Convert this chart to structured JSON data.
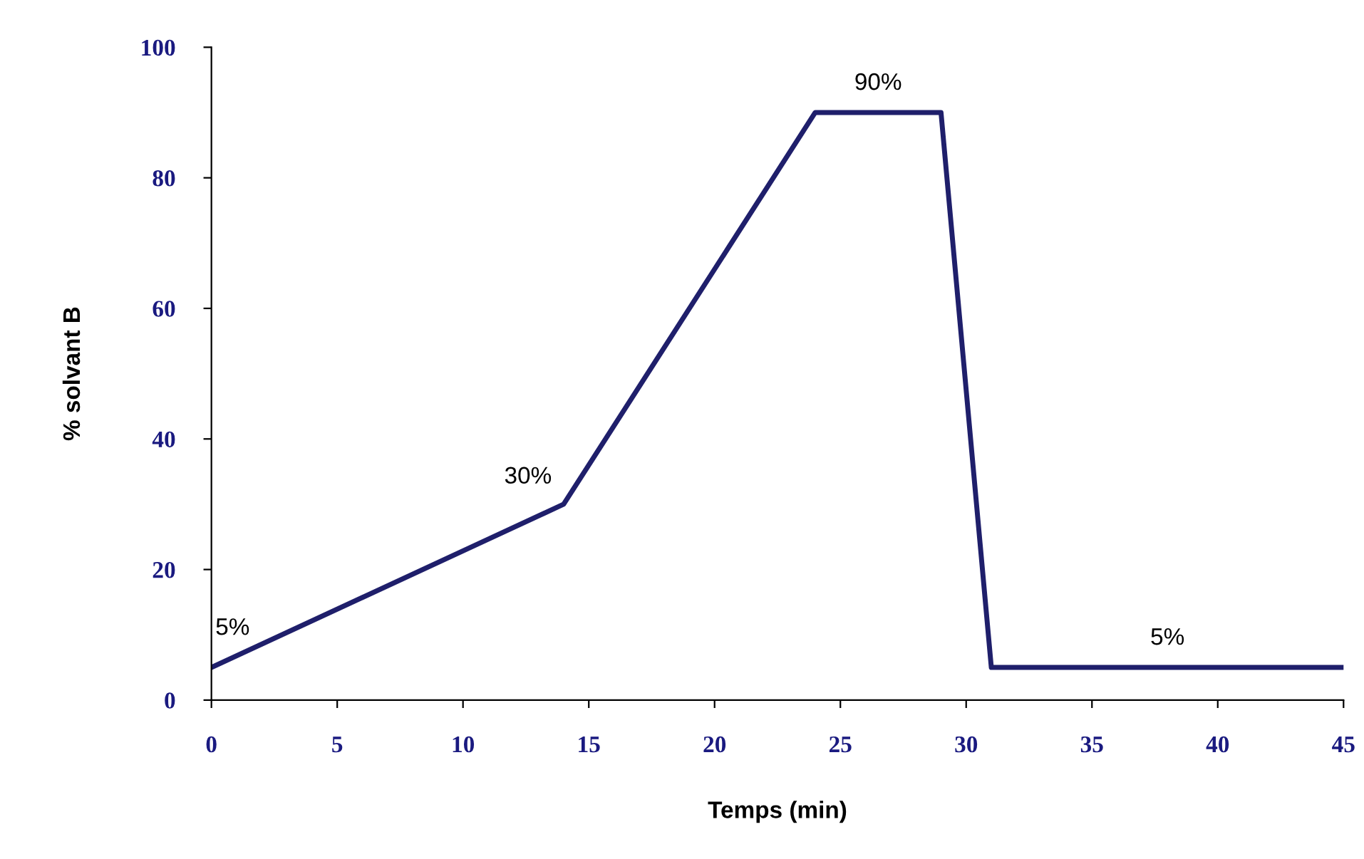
{
  "chart_data": {
    "type": "line",
    "xlabel": "Temps (min)",
    "ylabel": "% solvant B",
    "x": [
      0,
      14,
      24,
      29,
      31,
      45
    ],
    "series": [
      {
        "color": "#1f1f6b",
        "values": [
          5,
          30,
          90,
          90,
          5,
          5
        ]
      }
    ],
    "xlim": [
      0,
      45
    ],
    "xticks": [
      0,
      5,
      10,
      15,
      20,
      25,
      30,
      35,
      40,
      45
    ],
    "ylim": [
      0,
      100
    ],
    "yticks": [
      0,
      20,
      40,
      60,
      80,
      100
    ],
    "grid": false,
    "legend": false,
    "marker": "none",
    "line_style": "solid",
    "annotations": [
      {
        "text": "5%",
        "x": 0,
        "y": 5
      },
      {
        "text": "30%",
        "x": 14,
        "y": 30
      },
      {
        "text": "90%",
        "x": 26.5,
        "y": 90
      },
      {
        "text": "5%",
        "x": 38,
        "y": 5
      }
    ]
  }
}
